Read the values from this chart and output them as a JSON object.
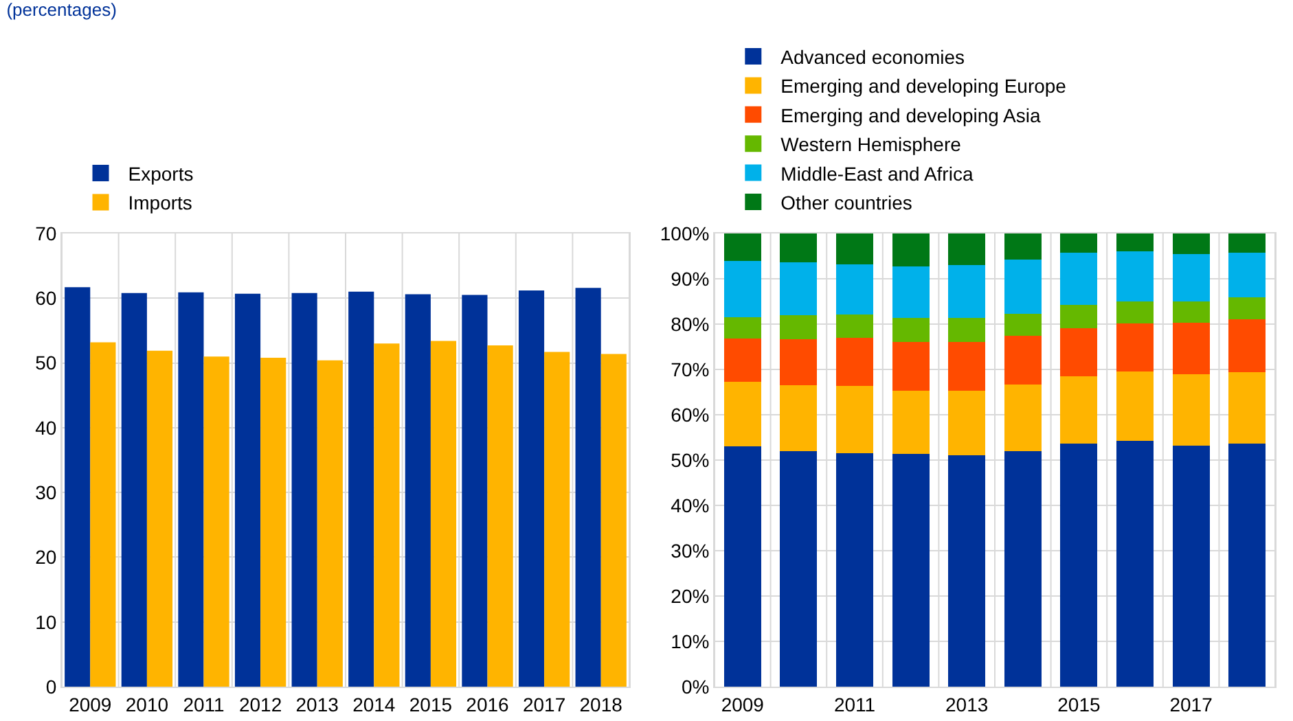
{
  "chart_data": [
    {
      "type": "bar",
      "title": "(percentages)",
      "categories": [
        "2009",
        "2010",
        "2011",
        "2012",
        "2013",
        "2014",
        "2015",
        "2016",
        "2017",
        "2018"
      ],
      "series": [
        {
          "name": "Exports",
          "color": "#003299",
          "values": [
            61.7,
            60.8,
            60.9,
            60.7,
            60.8,
            61.0,
            60.6,
            60.5,
            61.2,
            61.6
          ]
        },
        {
          "name": "Imports",
          "color": "#ffb400",
          "values": [
            53.2,
            51.9,
            51.0,
            50.8,
            50.4,
            53.0,
            53.4,
            52.7,
            51.7,
            51.4
          ]
        }
      ],
      "ylim": [
        0,
        70
      ],
      "yticks": [
        0,
        10,
        20,
        30,
        40,
        50,
        60,
        70
      ],
      "grid": true,
      "legend": "top left"
    },
    {
      "type": "bar",
      "stacked": true,
      "categories": [
        "2009",
        null,
        "2011",
        null,
        "2013",
        null,
        "2015",
        null,
        "2017",
        null
      ],
      "series": [
        {
          "name": "Advanced economies",
          "color": "#003299",
          "values": [
            53.0,
            52.0,
            51.5,
            51.3,
            51.0,
            51.9,
            53.7,
            54.3,
            53.2,
            53.6
          ]
        },
        {
          "name": "Emerging and developing Europe",
          "color": "#ffb400",
          "values": [
            14.3,
            14.5,
            14.8,
            14.0,
            14.3,
            14.7,
            14.8,
            15.2,
            15.7,
            15.8
          ]
        },
        {
          "name": "Emerging and developing Asia",
          "color": "#ff4b00",
          "values": [
            9.5,
            10.2,
            10.6,
            10.7,
            10.7,
            10.8,
            10.6,
            10.7,
            11.4,
            11.6
          ]
        },
        {
          "name": "Western Hemisphere",
          "color": "#65b800",
          "values": [
            4.7,
            5.2,
            5.2,
            5.3,
            5.3,
            4.9,
            5.1,
            4.8,
            4.7,
            4.9
          ]
        },
        {
          "name": "Middle-East and Africa",
          "color": "#00b1ea",
          "values": [
            12.5,
            11.7,
            11.1,
            11.5,
            11.7,
            12.0,
            11.6,
            11.0,
            10.5,
            9.8
          ]
        },
        {
          "name": "Other countries",
          "color": "#007816",
          "values": [
            6.0,
            6.4,
            6.8,
            7.2,
            7.0,
            5.7,
            4.2,
            4.0,
            4.5,
            4.3
          ]
        }
      ],
      "ylim": [
        0,
        100
      ],
      "yticks": [
        {
          "value": 0,
          "label": "0%"
        },
        {
          "value": 10,
          "label": "10%"
        },
        {
          "value": 20,
          "label": "20%"
        },
        {
          "value": 30,
          "label": "30%"
        },
        {
          "value": 40,
          "label": "40%"
        },
        {
          "value": 50,
          "label": "50%"
        },
        {
          "value": 60,
          "label": "60%"
        },
        {
          "value": 70,
          "label": "70%"
        },
        {
          "value": 80,
          "label": "80%"
        },
        {
          "value": 90,
          "label": "90%"
        },
        {
          "value": 100,
          "label": "100%"
        }
      ],
      "grid": true,
      "legend": "top left"
    }
  ]
}
